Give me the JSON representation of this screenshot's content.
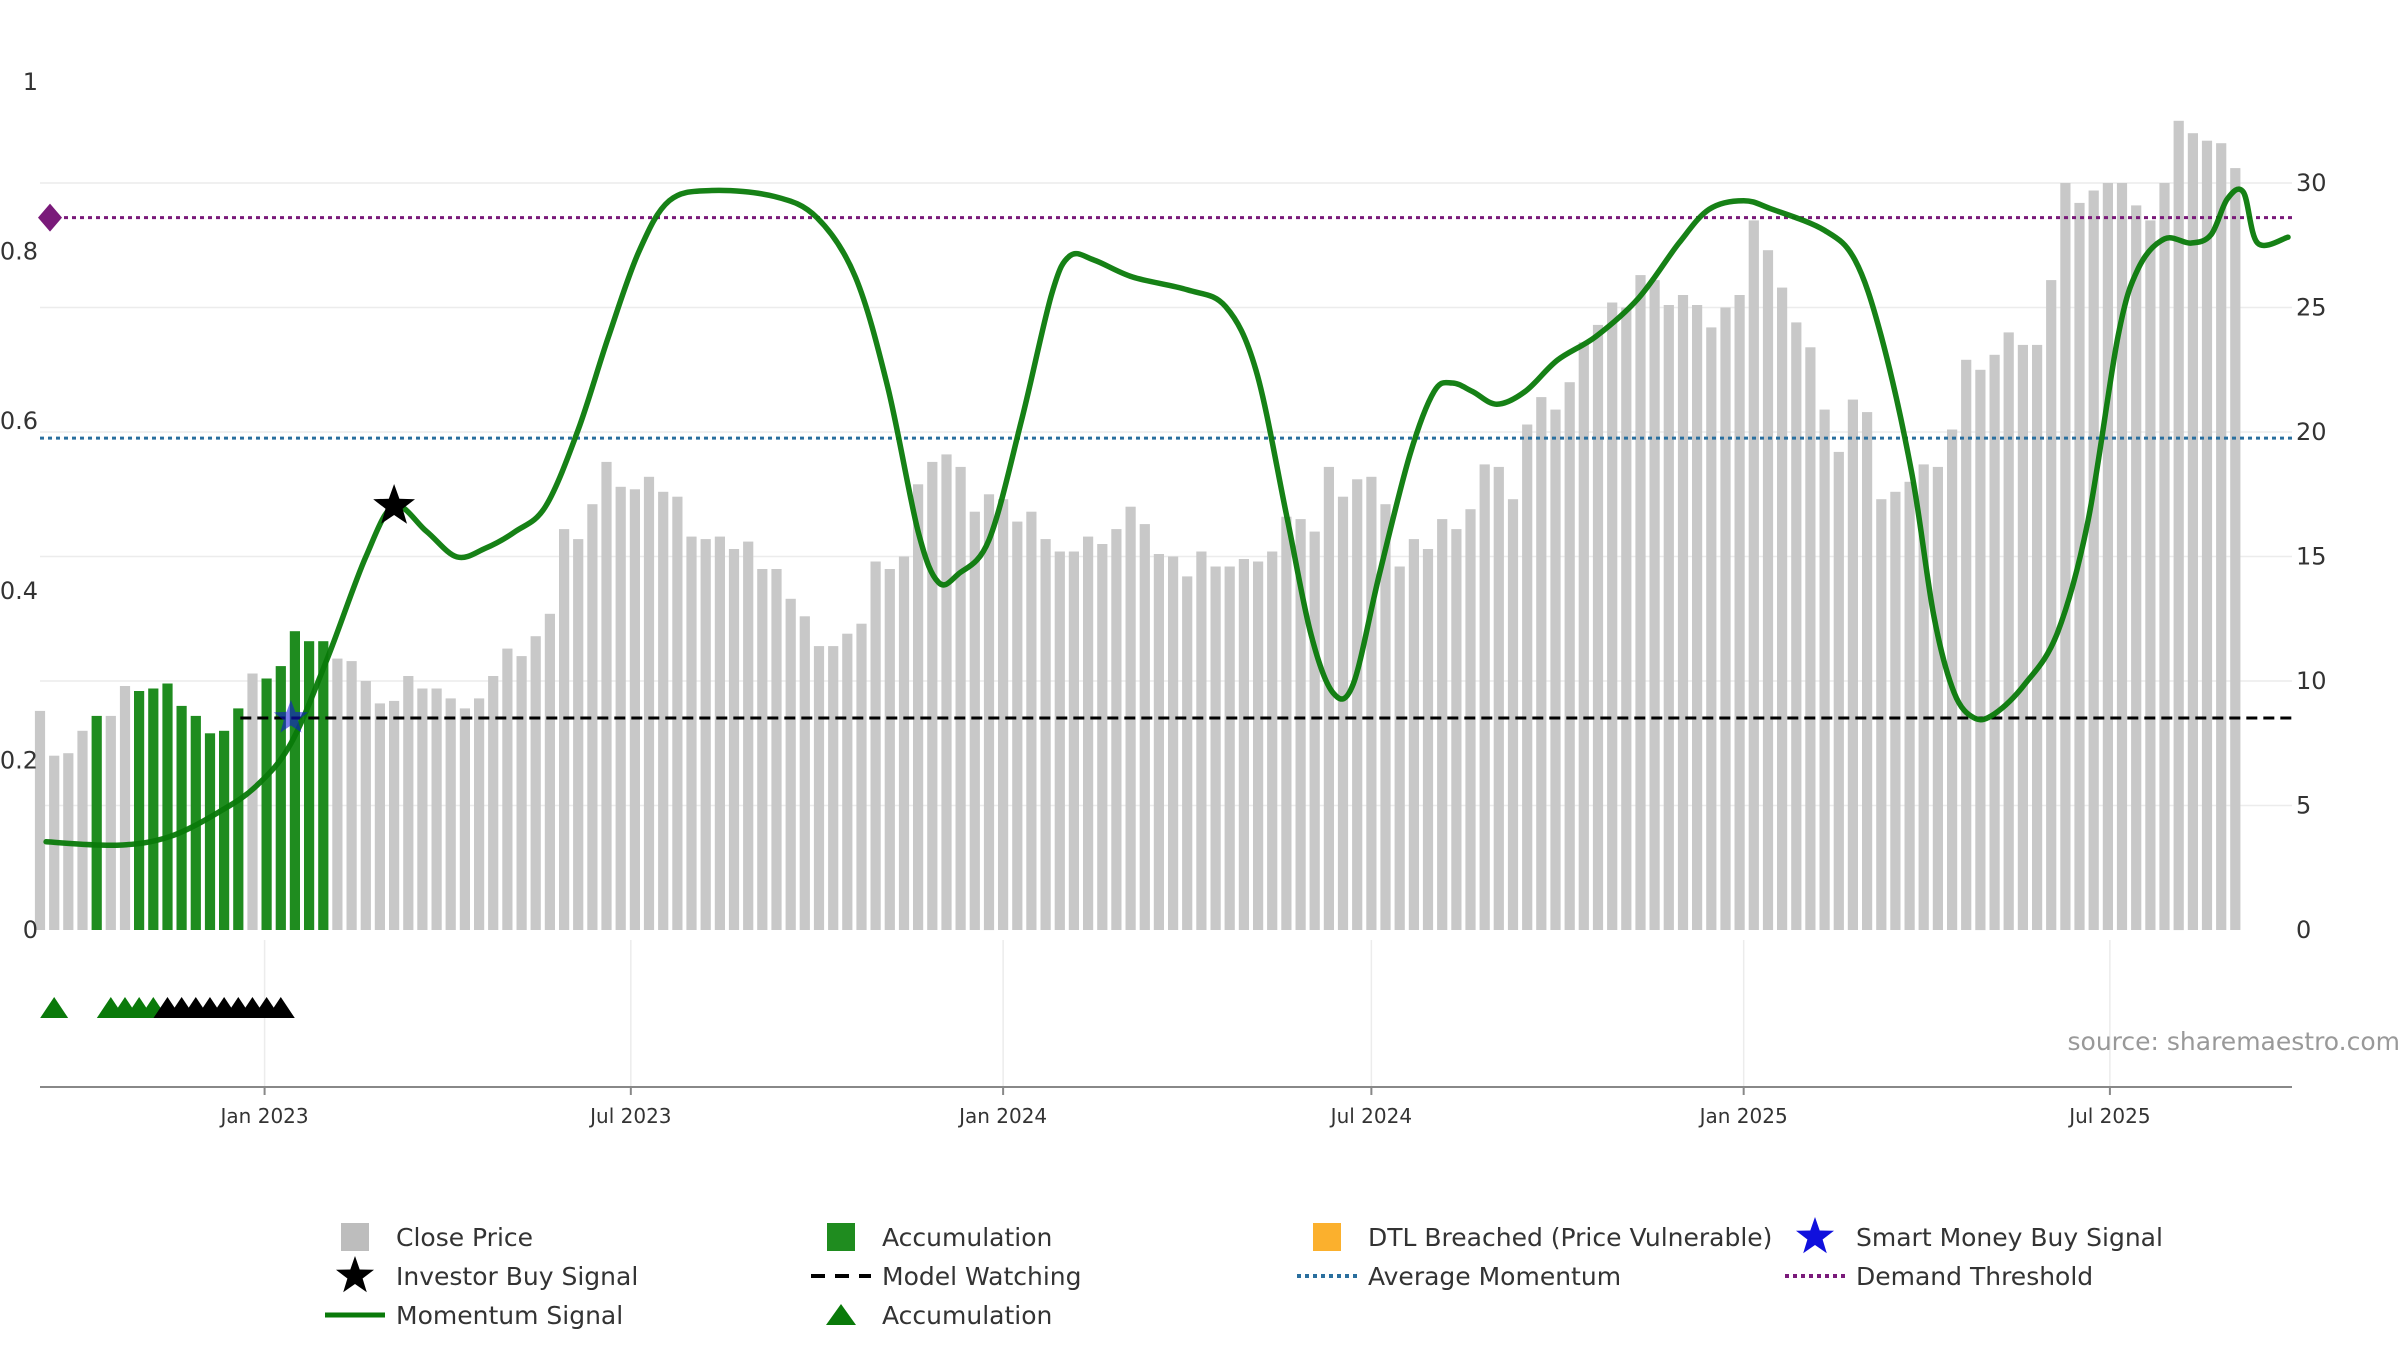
{
  "chart_data": {
    "type": "bar",
    "title": "",
    "source": "source: sharemaestro.com",
    "colors": {
      "close_price": "#c8c8c8",
      "accumulation": "#1f8c1f",
      "dtl_breached": "#fdd186",
      "momentum": "#0a7a0a",
      "investor_signal": "#000000",
      "smart_money": "#1010dd",
      "average_momentum": "#2a6f9e",
      "demand_threshold": "#7a1a7a",
      "model_watching": "#000000"
    },
    "left_axis": {
      "range": [
        0,
        1
      ],
      "ticks": [
        "0",
        "0.2",
        "0.4",
        "0.6",
        "0.8",
        "1"
      ]
    },
    "right_axis": {
      "range": [
        0,
        34
      ],
      "ticks": [
        "0",
        "5",
        "10",
        "15",
        "20",
        "25",
        "30"
      ]
    },
    "x_axis": {
      "range": [
        "2022-09-12",
        "2025-09-29"
      ],
      "ticks": [
        {
          "date": "2023-01-01",
          "label": "Jan 2023"
        },
        {
          "date": "2023-07-01",
          "label": "Jul 2023"
        },
        {
          "date": "2024-01-01",
          "label": "Jan 2024"
        },
        {
          "date": "2024-07-01",
          "label": "Jul 2024"
        },
        {
          "date": "2025-01-01",
          "label": "Jan 2025"
        },
        {
          "date": "2025-07-01",
          "label": "Jul 2025"
        }
      ]
    },
    "bar_series_name": "Close Price",
    "bar_start": "2022-09-12",
    "bar_interval_days": 7,
    "bar_states": "GGGGAGGAAAAAAAAGAAAAAGGGGGGGGGGGGGGGGGGGGGGGGGGGGGGGGGGGGGGGGGGGGGGGGGGGGGGGGGGGGGGGGGGGGGGGGGGGGGGGGGGGGGGGGGGGGGGGGGGGGGGGGGGGGGGGGGGGGGGGGGGGGGGGGGGGGGGGGGGGGGGGGGGGGGGGGGGGGGGGGGGGGGGGGGGGGGGGGGGGGGGGGGGGGGGGGGGGGGGGGGGGGGGGGGGGGGGGGGGGGGGGGGGGGGGGGGGGGGGGGGGGGGGGGGGGGGGGGDDDDDDDGDDDDD",
    "bar_values": [
      8.8,
      7.0,
      7.1,
      8.0,
      8.6,
      8.6,
      9.8,
      9.6,
      9.7,
      9.9,
      9.0,
      8.6,
      7.9,
      8.0,
      8.9,
      10.3,
      10.1,
      10.6,
      12.0,
      11.6,
      11.6,
      10.9,
      10.8,
      10.0,
      9.1,
      9.2,
      10.2,
      9.7,
      9.7,
      9.3,
      8.9,
      9.3,
      10.2,
      11.3,
      11.0,
      11.8,
      12.7,
      16.1,
      15.7,
      17.1,
      18.8,
      17.8,
      17.7,
      18.2,
      17.6,
      17.4,
      15.8,
      15.7,
      15.8,
      15.3,
      15.6,
      14.5,
      14.5,
      13.3,
      12.6,
      11.4,
      11.4,
      11.9,
      12.3,
      14.8,
      14.5,
      15.0,
      17.9,
      18.8,
      19.1,
      18.6,
      16.8,
      17.5,
      17.3,
      16.4,
      16.8,
      15.7,
      15.2,
      15.2,
      15.8,
      15.5,
      16.1,
      17.0,
      16.3,
      15.1,
      15.0,
      14.2,
      15.2,
      14.6,
      14.6,
      14.9,
      14.8,
      15.2,
      16.6,
      16.5,
      16.0,
      18.6,
      17.4,
      18.1,
      18.2,
      17.1,
      14.6,
      15.7,
      15.3,
      16.5,
      16.1,
      16.9,
      18.7,
      18.6,
      17.3,
      20.3,
      21.4,
      20.9,
      22.0,
      23.6,
      24.3,
      25.2,
      25.0,
      26.3,
      26.1,
      25.1,
      25.5,
      25.1,
      24.2,
      25.0,
      25.5,
      28.5,
      27.3,
      25.8,
      24.4,
      23.4,
      20.9,
      19.2,
      21.3,
      20.8,
      17.3,
      17.6,
      18.0,
      18.7,
      18.6,
      20.1,
      22.9,
      22.5,
      23.1,
      24.0,
      23.5,
      23.5,
      26.1,
      30.0,
      29.2,
      29.7,
      30.0,
      30.0,
      29.1,
      28.5,
      30.0,
      32.5,
      32.0,
      31.7,
      31.6,
      30.6
    ],
    "momentum_points": [
      [
        "2022-09-15",
        0.104
      ],
      [
        "2022-10-20",
        0.1
      ],
      [
        "2022-11-15",
        0.11
      ],
      [
        "2022-12-10",
        0.14
      ],
      [
        "2022-12-28",
        0.17
      ],
      [
        "2023-01-14",
        0.22
      ],
      [
        "2023-02-01",
        0.32
      ],
      [
        "2023-02-20",
        0.44
      ],
      [
        "2023-03-06",
        0.5
      ],
      [
        "2023-03-22",
        0.47
      ],
      [
        "2023-04-06",
        0.44
      ],
      [
        "2023-04-20",
        0.45
      ],
      [
        "2023-05-05",
        0.47
      ],
      [
        "2023-05-20",
        0.5
      ],
      [
        "2023-06-05",
        0.59
      ],
      [
        "2023-06-20",
        0.7
      ],
      [
        "2023-07-05",
        0.8
      ],
      [
        "2023-07-20",
        0.86
      ],
      [
        "2023-08-10",
        0.872
      ],
      [
        "2023-09-10",
        0.865
      ],
      [
        "2023-10-01",
        0.84
      ],
      [
        "2023-10-20",
        0.77
      ],
      [
        "2023-11-05",
        0.64
      ],
      [
        "2023-11-20",
        0.47
      ],
      [
        "2023-11-30",
        0.41
      ],
      [
        "2023-12-10",
        0.42
      ],
      [
        "2023-12-25",
        0.46
      ],
      [
        "2024-01-10",
        0.6
      ],
      [
        "2024-01-25",
        0.75
      ],
      [
        "2024-02-03",
        0.795
      ],
      [
        "2024-02-15",
        0.79
      ],
      [
        "2024-03-05",
        0.77
      ],
      [
        "2024-04-01",
        0.755
      ],
      [
        "2024-04-20",
        0.735
      ],
      [
        "2024-05-05",
        0.66
      ],
      [
        "2024-05-20",
        0.49
      ],
      [
        "2024-06-01",
        0.35
      ],
      [
        "2024-06-12",
        0.28
      ],
      [
        "2024-06-22",
        0.29
      ],
      [
        "2024-07-05",
        0.42
      ],
      [
        "2024-07-20",
        0.56
      ],
      [
        "2024-08-01",
        0.635
      ],
      [
        "2024-08-10",
        0.645
      ],
      [
        "2024-08-20",
        0.635
      ],
      [
        "2024-09-01",
        0.62
      ],
      [
        "2024-09-15",
        0.635
      ],
      [
        "2024-10-01",
        0.672
      ],
      [
        "2024-10-20",
        0.7
      ],
      [
        "2024-11-10",
        0.745
      ],
      [
        "2024-11-30",
        0.81
      ],
      [
        "2024-12-15",
        0.85
      ],
      [
        "2025-01-01",
        0.86
      ],
      [
        "2025-01-15",
        0.85
      ],
      [
        "2025-02-10",
        0.825
      ],
      [
        "2025-02-25",
        0.79
      ],
      [
        "2025-03-10",
        0.7
      ],
      [
        "2025-03-25",
        0.54
      ],
      [
        "2025-04-05",
        0.37
      ],
      [
        "2025-04-15",
        0.28
      ],
      [
        "2025-04-25",
        0.25
      ],
      [
        "2025-05-05",
        0.255
      ],
      [
        "2025-05-20",
        0.29
      ],
      [
        "2025-06-05",
        0.35
      ],
      [
        "2025-06-20",
        0.48
      ],
      [
        "2025-07-05",
        0.7
      ],
      [
        "2025-07-15",
        0.78
      ],
      [
        "2025-07-28",
        0.815
      ],
      [
        "2025-08-10",
        0.81
      ],
      [
        "2025-08-20",
        0.82
      ],
      [
        "2025-08-28",
        0.862
      ],
      [
        "2025-09-05",
        0.87
      ],
      [
        "2025-09-12",
        0.81
      ],
      [
        "2025-09-27",
        0.817
      ]
    ],
    "average_momentum": 0.58,
    "demand_threshold": 0.84,
    "model_watching": 0.25,
    "model_watching_start": "2022-12-20",
    "investor_buy_signal": {
      "date": "2023-03-06",
      "value": 0.5
    },
    "smart_money_buy_signal": {
      "date": "2023-01-14",
      "value": 0.25
    },
    "accumulation_markers": [
      {
        "date": "2022-09-19",
        "color": "green"
      },
      {
        "date": "2022-10-17",
        "color": "green"
      },
      {
        "date": "2022-10-24",
        "color": "green"
      },
      {
        "date": "2022-10-31",
        "color": "green"
      },
      {
        "date": "2022-11-07",
        "color": "green"
      },
      {
        "date": "2022-11-14",
        "color": "black"
      },
      {
        "date": "2022-11-21",
        "color": "black"
      },
      {
        "date": "2022-11-28",
        "color": "black"
      },
      {
        "date": "2022-12-05",
        "color": "black"
      },
      {
        "date": "2022-12-12",
        "color": "black"
      },
      {
        "date": "2022-12-19",
        "color": "black"
      },
      {
        "date": "2022-12-26",
        "color": "black"
      },
      {
        "date": "2023-01-02",
        "color": "black"
      },
      {
        "date": "2023-01-09",
        "color": "black"
      }
    ]
  },
  "legend": [
    {
      "key": "close",
      "symbol": "square",
      "color": "#bdbdbd",
      "label": "Close Price"
    },
    {
      "key": "accum",
      "symbol": "square",
      "color": "#1f8c1f",
      "label": "Accumulation"
    },
    {
      "key": "dtl",
      "symbol": "square",
      "color": "#fbb02d",
      "label": "DTL Breached (Price Vulnerable)"
    },
    {
      "key": "smart",
      "symbol": "star",
      "color": "#1010dd",
      "label": "Smart Money Buy Signal"
    },
    {
      "key": "investor",
      "symbol": "star",
      "color": "#000000",
      "label": "Investor Buy Signal"
    },
    {
      "key": "watch",
      "symbol": "dash",
      "color": "#000000",
      "label": "Model Watching"
    },
    {
      "key": "avgmom",
      "symbol": "dots",
      "color": "#2a6f9e",
      "label": "Average Momentum"
    },
    {
      "key": "demand",
      "symbol": "dots",
      "color": "#7a1a7a",
      "label": "Demand Threshold"
    },
    {
      "key": "momentum",
      "symbol": "line",
      "color": "#0a7a0a",
      "label": "Momentum Signal"
    },
    {
      "key": "accum_tri",
      "symbol": "triangle",
      "color": "#0a7a0a",
      "label": "Accumulation"
    }
  ]
}
